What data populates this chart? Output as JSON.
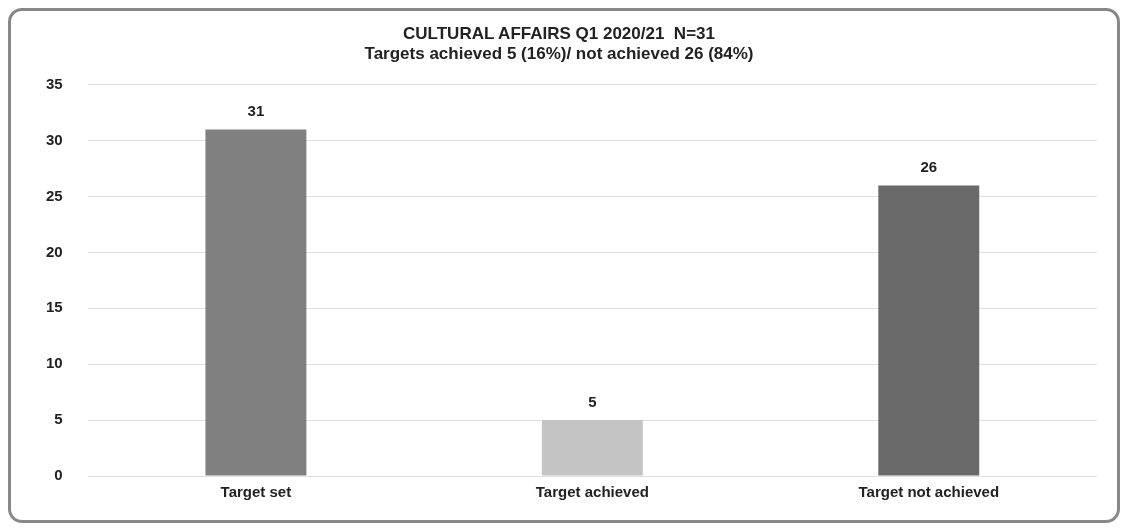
{
  "chart_data": {
    "type": "bar",
    "title": "CULTURAL AFFAIRS Q1 2020/21  N=31",
    "subtitle": "Targets achieved 5 (16%)/ not achieved 26 (84%)",
    "categories": [
      "Target set",
      "Target achieved",
      "Target not achieved"
    ],
    "values": [
      31,
      5,
      26
    ],
    "colors": [
      "#808080",
      "#c4c4c4",
      "#696969"
    ],
    "ylim": [
      0,
      35
    ],
    "yticks": [
      0,
      5,
      10,
      15,
      20,
      25,
      30,
      35
    ],
    "grid": "y",
    "data_labels": true,
    "legend": false
  }
}
